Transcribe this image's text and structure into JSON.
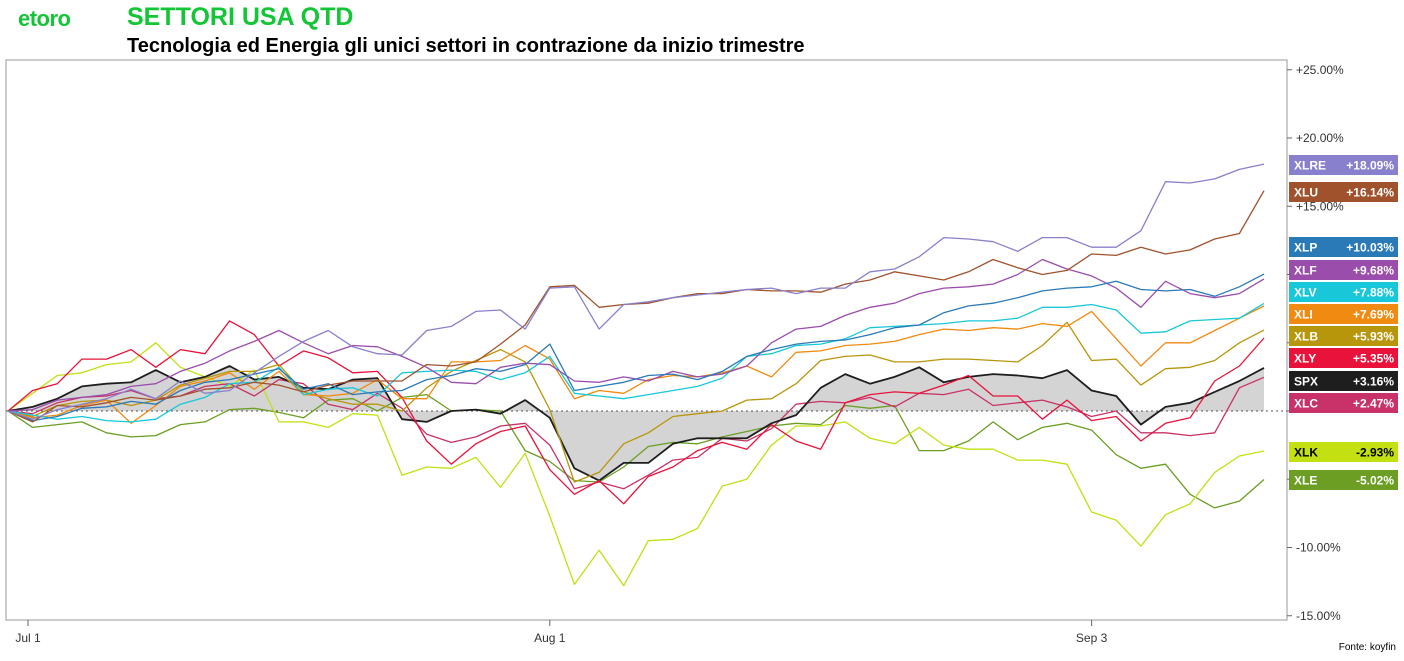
{
  "header": {
    "logo": "etoro",
    "title": "SETTORI USA QTD",
    "subtitle": "Tecnologia ed Energia gli unici settori in contrazione da inizio trimestre"
  },
  "source": "Fonte: koyfin",
  "chart_data": {
    "type": "line",
    "title": "SETTORI USA QTD",
    "subtitle": "Tecnologia ed Energia gli unici settori in contrazione da inizio trimestre",
    "xlabel": "",
    "ylabel": "",
    "ylim": [
      -15.7,
      26
    ],
    "y_ticks": [
      25,
      20,
      15,
      10,
      5,
      0,
      -5,
      -10,
      -15
    ],
    "y_tick_labels": [
      "+25.00%",
      "+20.00%",
      "+15.00%",
      "",
      "",
      "",
      "",
      "-10.00%",
      "-15.00%"
    ],
    "x_ticks": [
      {
        "index": 0,
        "label": "Jul 1"
      },
      {
        "index": 22,
        "label": "Aug 1"
      },
      {
        "index": 44,
        "label": "Sep 3"
      }
    ],
    "baseline": 0,
    "grid": false,
    "legend": "right-side value tags",
    "series": [
      {
        "name": "XLRE",
        "label": "+18.09%",
        "color": "#8880cc",
        "values": [
          0,
          -0.6,
          0.1,
          0.5,
          0.9,
          1.6,
          0.9,
          2.2,
          1.3,
          1.5,
          2.8,
          4.0,
          5.1,
          5.9,
          4.7,
          4.2,
          4.1,
          5.9,
          6.2,
          7.3,
          7.4,
          6.0,
          9.0,
          9.1,
          6.0,
          7.8,
          8.0,
          8.3,
          8.5,
          8.7,
          8.9,
          9.0,
          8.6,
          9.0,
          9.0,
          10.2,
          10.4,
          11.3,
          12.7,
          12.6,
          12.4,
          11.7,
          12.7,
          12.7,
          12.0,
          12.0,
          13.2,
          16.8,
          16.7,
          17.0,
          17.7,
          18.09
        ]
      },
      {
        "name": "XLU",
        "label": "+16.14%",
        "color": "#a0522d",
        "values": [
          0,
          -0.8,
          0.4,
          0.3,
          0.6,
          1.0,
          0.8,
          1.1,
          1.6,
          1.7,
          2.1,
          1.9,
          1.4,
          1.9,
          2.2,
          2.2,
          2.2,
          3.4,
          3.3,
          3.6,
          4.9,
          6.3,
          9.1,
          9.2,
          7.6,
          7.8,
          7.9,
          8.3,
          8.6,
          8.6,
          8.9,
          8.8,
          8.8,
          8.7,
          9.3,
          9.6,
          10.2,
          9.9,
          9.6,
          10.2,
          11.1,
          10.5,
          10.0,
          10.3,
          11.5,
          11.4,
          12.0,
          11.5,
          11.8,
          12.6,
          13.0,
          16.14
        ]
      },
      {
        "name": "XLP",
        "label": "+10.03%",
        "color": "#2a7ab8",
        "values": [
          0,
          -0.7,
          -0.4,
          0.2,
          0.3,
          0.7,
          0.5,
          1.5,
          2.1,
          2.3,
          2.7,
          3.1,
          1.6,
          2.0,
          1.2,
          1.4,
          1.5,
          2.3,
          2.6,
          3.1,
          2.9,
          3.4,
          4.9,
          1.5,
          1.8,
          2.1,
          2.6,
          2.7,
          2.3,
          2.9,
          4.0,
          4.5,
          4.9,
          5.1,
          5.2,
          5.6,
          6.1,
          6.3,
          7.2,
          7.7,
          7.9,
          8.3,
          8.8,
          9.0,
          9.1,
          9.5,
          8.9,
          8.8,
          8.9,
          8.4,
          9.1,
          10.03
        ]
      },
      {
        "name": "XLF",
        "label": "+9.68%",
        "color": "#9b4dac",
        "values": [
          0,
          0.1,
          0.8,
          1.0,
          1.2,
          1.8,
          2.0,
          2.9,
          3.5,
          4.4,
          5.1,
          5.9,
          5.0,
          4.2,
          4.8,
          4.7,
          4.0,
          3.2,
          2.1,
          2.0,
          3.2,
          3.5,
          3.4,
          2.2,
          2.1,
          2.5,
          2.2,
          2.9,
          2.5,
          2.7,
          3.3,
          5.0,
          6.0,
          6.2,
          7.0,
          7.6,
          7.9,
          8.6,
          9.0,
          9.1,
          9.3,
          10.0,
          11.1,
          10.4,
          9.9,
          9.0,
          7.6,
          9.5,
          8.6,
          8.3,
          8.6,
          9.68
        ]
      },
      {
        "name": "XLV",
        "label": "+7.88%",
        "color": "#18c8d8",
        "values": [
          0,
          -0.3,
          -0.6,
          -0.4,
          -0.7,
          -0.8,
          -0.6,
          0.5,
          1.0,
          2.0,
          2.1,
          3.2,
          1.2,
          1.6,
          1.7,
          1.1,
          2.8,
          2.9,
          3.0,
          2.9,
          2.3,
          2.8,
          4.0,
          1.3,
          1.1,
          0.9,
          1.2,
          1.5,
          1.8,
          2.4,
          4.0,
          4.2,
          4.8,
          4.9,
          5.3,
          6.1,
          6.2,
          6.3,
          6.4,
          6.6,
          6.6,
          6.8,
          7.6,
          7.6,
          7.8,
          7.4,
          5.7,
          5.8,
          6.6,
          6.7,
          6.8,
          7.88
        ]
      },
      {
        "name": "XLI",
        "label": "+7.69%",
        "color": "#f08a10",
        "values": [
          0,
          -0.5,
          -0.3,
          0.4,
          0.8,
          -0.9,
          0.4,
          1.8,
          2.2,
          2.8,
          1.6,
          2.9,
          1.2,
          1.1,
          1.3,
          2.3,
          0.9,
          0.9,
          3.6,
          3.6,
          3.7,
          4.8,
          3.8,
          0.9,
          1.5,
          1.3,
          2.3,
          2.6,
          2.5,
          2.8,
          3.3,
          2.5,
          4.3,
          4.4,
          4.8,
          4.9,
          5.1,
          5.6,
          6.0,
          5.9,
          6.1,
          6.0,
          6.4,
          6.2,
          7.3,
          5.3,
          3.3,
          5.0,
          5.0,
          5.9,
          6.8,
          7.69
        ]
      },
      {
        "name": "XLB",
        "label": "+5.93%",
        "color": "#b8960c",
        "values": [
          0,
          -0.4,
          0.4,
          0.7,
          0.8,
          0.4,
          0.8,
          1.9,
          2.4,
          2.9,
          2.9,
          3.4,
          1.4,
          0.9,
          0.5,
          0.5,
          0.0,
          1.7,
          2.9,
          3.7,
          4.5,
          3.6,
          0.1,
          -5.2,
          -4.5,
          -2.4,
          -1.6,
          -0.4,
          -0.2,
          0.0,
          0.8,
          0.9,
          2.0,
          3.7,
          4.0,
          4.1,
          3.6,
          3.6,
          3.8,
          3.8,
          3.7,
          3.6,
          4.8,
          6.5,
          3.7,
          3.8,
          1.9,
          3.1,
          3.2,
          3.7,
          5.0,
          5.93
        ]
      },
      {
        "name": "XLY",
        "label": "+5.35%",
        "color": "#e8123a",
        "values": [
          0,
          1.5,
          2.0,
          3.8,
          3.8,
          4.5,
          3.2,
          4.5,
          4.2,
          6.6,
          5.6,
          3.3,
          4.4,
          3.9,
          2.8,
          2.9,
          1.0,
          -2.2,
          -3.9,
          -2.4,
          -1.5,
          -1.1,
          -4.3,
          -6.1,
          -5.1,
          -6.8,
          -4.8,
          -4.1,
          -2.9,
          -2.3,
          -2.8,
          -1.0,
          -2.2,
          -2.8,
          0.6,
          1.2,
          1.4,
          1.3,
          1.9,
          2.6,
          1.1,
          1.1,
          -0.6,
          0.8,
          -0.7,
          -0.4,
          -2.2,
          -0.9,
          -0.5,
          2.2,
          3.3,
          5.35
        ]
      },
      {
        "name": "SPX",
        "label": "+3.16%",
        "color": "#1e1e1e",
        "fill": "#d4d4d4",
        "values": [
          0,
          0.3,
          0.9,
          1.8,
          2.0,
          2.1,
          3.0,
          2.1,
          2.5,
          3.3,
          2.3,
          2.5,
          1.7,
          1.6,
          2.3,
          2.4,
          -0.6,
          -0.8,
          0.0,
          0.1,
          -0.2,
          0.8,
          -0.5,
          -4.2,
          -5.1,
          -3.8,
          -3.8,
          -2.4,
          -2.0,
          -2.0,
          -2.0,
          -0.9,
          -0.3,
          1.7,
          2.7,
          2.0,
          2.5,
          3.2,
          2.1,
          2.5,
          2.7,
          2.6,
          2.4,
          3.0,
          1.5,
          1.1,
          -1.0,
          0.3,
          0.6,
          1.4,
          2.2,
          3.16
        ]
      },
      {
        "name": "XLC",
        "label": "+2.47%",
        "color": "#c83268",
        "values": [
          0,
          -0.2,
          0.6,
          1.0,
          1.1,
          1.5,
          0.9,
          1.1,
          1.8,
          2.0,
          1.1,
          2.3,
          2.0,
          0.5,
          0.1,
          1.3,
          0.2,
          -1.7,
          -2.3,
          -1.9,
          -1.1,
          -0.9,
          -2.5,
          -5.7,
          -5.2,
          -5.7,
          -4.7,
          -3.6,
          -3.4,
          -2.0,
          -2.2,
          -1.3,
          0.5,
          0.7,
          0.6,
          1.0,
          0.3,
          1.3,
          1.2,
          1.6,
          0.4,
          0.6,
          0.8,
          0.3,
          -0.4,
          0.0,
          -1.6,
          -1.6,
          -1.8,
          -1.6,
          1.7,
          2.47
        ]
      },
      {
        "name": "XLK",
        "label": "-2.93%",
        "color": "#c2e012",
        "values": [
          0,
          1.3,
          2.6,
          2.8,
          3.4,
          3.6,
          5.0,
          3.2,
          2.5,
          1.8,
          3.0,
          -0.8,
          -0.8,
          -1.2,
          -0.2,
          -0.3,
          -4.7,
          -4.1,
          -4.2,
          -3.4,
          -5.6,
          -3.1,
          -7.7,
          -12.7,
          -10.2,
          -12.8,
          -9.5,
          -9.4,
          -8.6,
          -5.5,
          -5.0,
          -2.5,
          -1.1,
          -1.1,
          -0.8,
          -2.0,
          -2.4,
          -1.2,
          -2.5,
          -2.8,
          -2.8,
          -3.6,
          -3.6,
          -3.9,
          -7.4,
          -8.0,
          -9.9,
          -7.6,
          -6.8,
          -4.5,
          -3.3,
          -2.93
        ]
      },
      {
        "name": "XLE",
        "label": "-5.02%",
        "color": "#6b9e22",
        "values": [
          0,
          -1.2,
          -1.0,
          -0.8,
          -1.6,
          -1.9,
          -1.8,
          -1.0,
          -0.8,
          0.1,
          0.2,
          -0.1,
          -0.5,
          0.8,
          0.9,
          0.0,
          1.0,
          1.2,
          0.0,
          0.1,
          0.0,
          -2.9,
          -3.7,
          -5.1,
          -5.2,
          -4.1,
          -2.6,
          -2.3,
          -2.4,
          -1.9,
          -1.5,
          -1.1,
          -0.9,
          -1.0,
          0.4,
          0.2,
          0.4,
          -2.9,
          -2.9,
          -2.2,
          -0.8,
          -2.1,
          -1.2,
          -0.9,
          -1.4,
          -3.2,
          -4.2,
          -3.9,
          -6.1,
          -7.1,
          -6.6,
          -5.02
        ]
      }
    ]
  }
}
